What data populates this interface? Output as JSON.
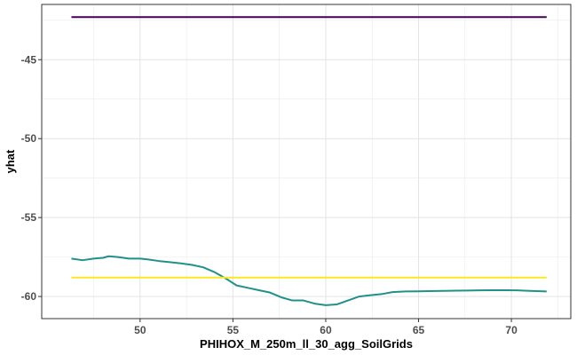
{
  "chart_data": {
    "type": "line",
    "title": "",
    "xlabel": "PHIHOX_M_250m_ll_30_agg_SoilGrids",
    "ylabel": "yhat",
    "xlim": [
      44.7,
      73.2
    ],
    "ylim": [
      -61.4,
      -41.5
    ],
    "x_ticks": [
      50,
      55,
      60,
      65,
      70
    ],
    "y_ticks": [
      -60,
      -55,
      -50,
      -45
    ],
    "x_tick_labels": [
      "50",
      "55",
      "60",
      "65",
      "70"
    ],
    "y_tick_labels": [
      "-60",
      "-55",
      "-50",
      "-45"
    ],
    "grid": true,
    "legend": "none",
    "series": [
      {
        "color": "#440154",
        "x": [
          46.3,
          71.9
        ],
        "y": [
          -42.3,
          -42.3
        ]
      },
      {
        "color": "#21908C",
        "x": [
          46.3,
          46.9,
          47.5,
          48.0,
          48.3,
          48.8,
          49.4,
          50.0,
          50.4,
          51.0,
          51.6,
          52.2,
          52.8,
          53.4,
          54.0,
          54.6,
          55.2,
          55.8,
          56.4,
          57.0,
          57.6,
          58.2,
          58.8,
          59.4,
          60.0,
          60.6,
          61.2,
          61.8,
          62.4,
          63.0,
          63.6,
          64.3,
          65.0,
          65.6,
          66.3,
          67.0,
          67.6,
          68.3,
          69.0,
          69.6,
          70.3,
          71.0,
          71.9
        ],
        "y": [
          -57.6,
          -57.7,
          -57.6,
          -57.55,
          -57.45,
          -57.5,
          -57.6,
          -57.6,
          -57.65,
          -57.75,
          -57.82,
          -57.9,
          -58.0,
          -58.15,
          -58.45,
          -58.85,
          -59.3,
          -59.45,
          -59.6,
          -59.75,
          -60.05,
          -60.25,
          -60.25,
          -60.45,
          -60.55,
          -60.5,
          -60.25,
          -60.0,
          -59.92,
          -59.85,
          -59.72,
          -59.68,
          -59.67,
          -59.66,
          -59.64,
          -59.63,
          -59.62,
          -59.61,
          -59.6,
          -59.6,
          -59.61,
          -59.64,
          -59.68
        ]
      },
      {
        "color": "#FDE725",
        "x": [
          46.3,
          71.9
        ],
        "y": [
          -58.8,
          -58.8
        ]
      }
    ]
  }
}
